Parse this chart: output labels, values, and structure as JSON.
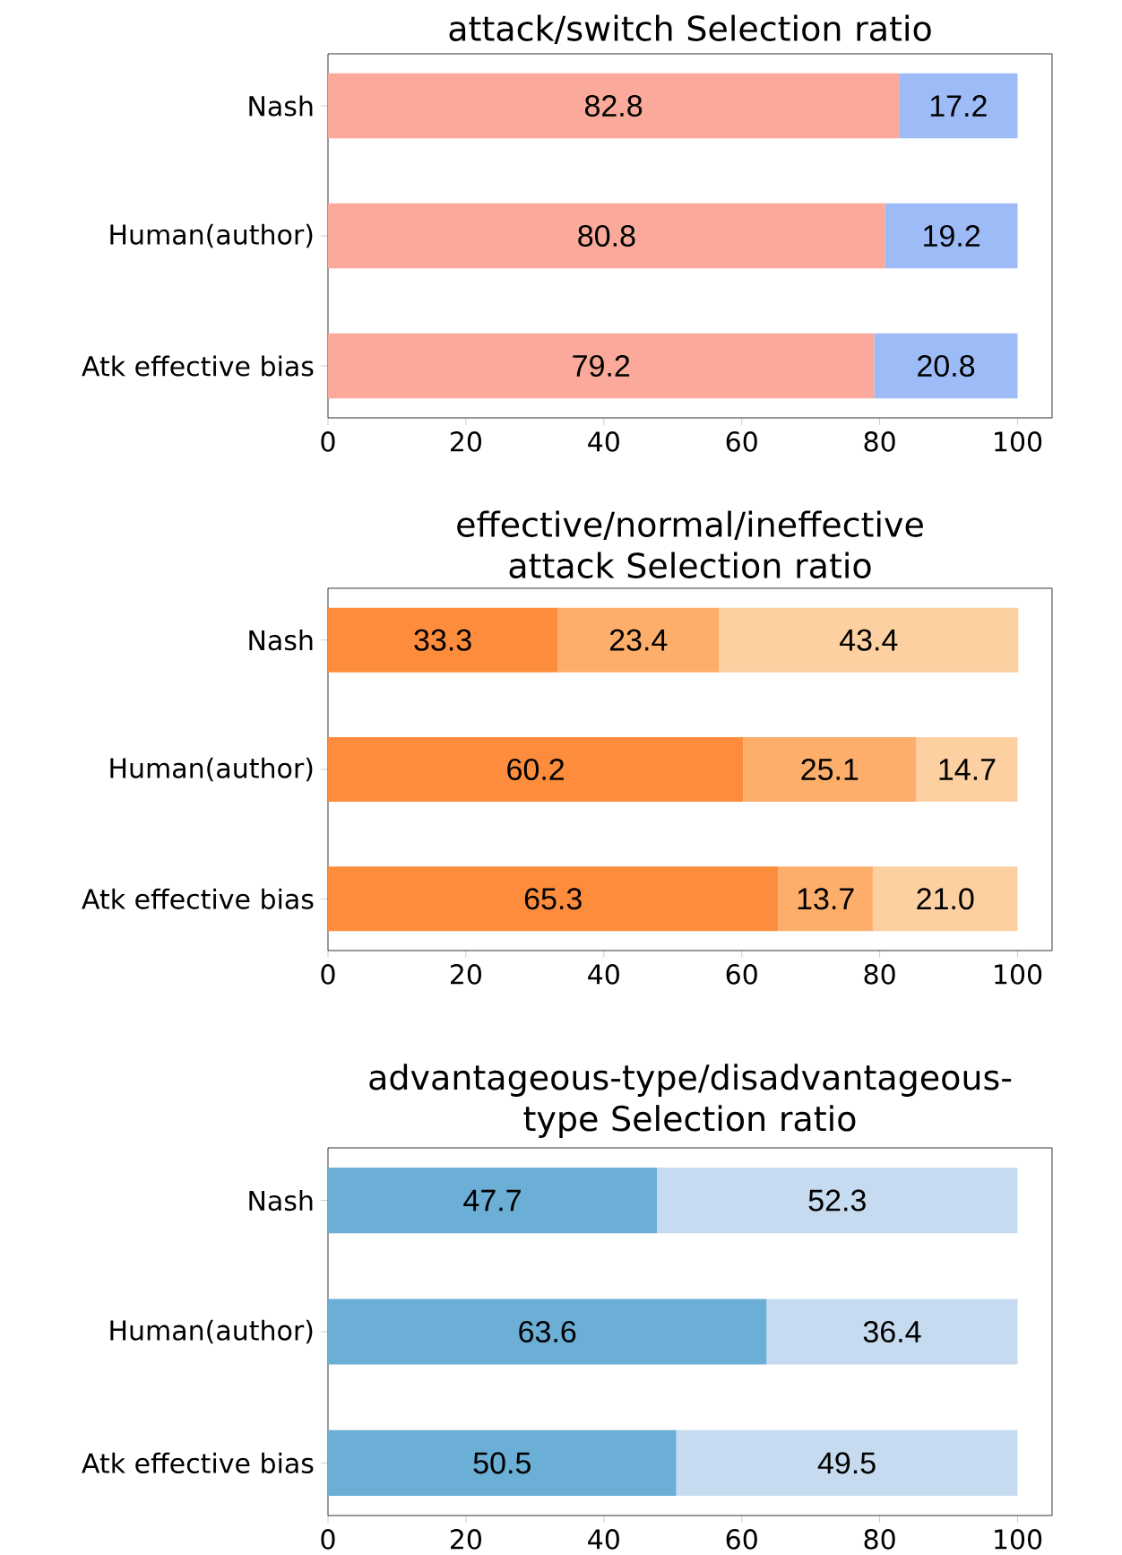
{
  "chart_data": [
    {
      "type": "bar",
      "orientation": "horizontal",
      "stacked": true,
      "data_labels": true,
      "title": "attack/switch Selection ratio",
      "categories": [
        "Nash",
        "Human(author)",
        "Atk effective bias"
      ],
      "xlim": [
        0,
        105
      ],
      "xticks": [
        0,
        20,
        40,
        60,
        80,
        100
      ],
      "series": [
        {
          "color": "#faa99a",
          "values": [
            82.8,
            80.8,
            79.2
          ]
        },
        {
          "color": "#9dbbf7",
          "values": [
            17.2,
            19.2,
            20.8
          ]
        }
      ]
    },
    {
      "type": "bar",
      "orientation": "horizontal",
      "stacked": true,
      "title": "effective/normal/ineffective attack Selection ratio",
      "categories": [
        "Nash",
        "Human(author)",
        "Atk effective bias"
      ],
      "xlim": [
        0,
        105
      ],
      "xticks": [
        0,
        20,
        40,
        60,
        80,
        100
      ],
      "series": [
        {
          "color": "#fd8d3c",
          "values": [
            33.3,
            60.2,
            65.3
          ],
          "value_labels": [
            "33.3",
            "60.2",
            "65.3"
          ]
        },
        {
          "color": "#fdae6b",
          "values": [
            23.4,
            25.1,
            13.7
          ],
          "value_labels": [
            "23.4",
            "25.1",
            "13.7"
          ]
        },
        {
          "color": "#fdd0a2",
          "values": [
            43.4,
            14.7,
            21.0
          ],
          "value_labels": [
            "43.4",
            "14.7",
            "21.0"
          ]
        }
      ]
    },
    {
      "type": "bar",
      "orientation": "horizontal",
      "stacked": true,
      "data_labels": true,
      "title": "advantageous-type/disadvantageous-type Selection ratio",
      "categories": [
        "Nash",
        "Human(author)",
        "Atk effective bias"
      ],
      "xlim": [
        0,
        105
      ],
      "xticks": [
        0,
        20,
        40,
        60,
        80,
        100
      ],
      "series": [
        {
          "color": "#6baed6",
          "values": [
            47.7,
            63.6,
            50.5
          ]
        },
        {
          "color": "#c6dbef",
          "values": [
            52.3,
            36.4,
            49.5
          ]
        }
      ]
    }
  ]
}
